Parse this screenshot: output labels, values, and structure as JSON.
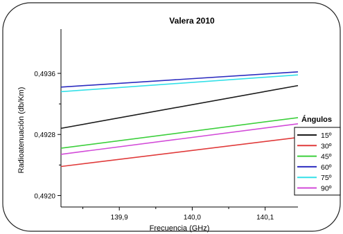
{
  "chart_data": {
    "type": "line",
    "title": "Valera 2010",
    "xlabel": "Frecuencia (GHz)",
    "ylabel": "Radioatenuación (db/Km)",
    "xlim": [
      139.82,
      140.145
    ],
    "ylim": [
      0.49185,
      0.49418
    ],
    "x_ticks": [
      139.9,
      140.0,
      140.1
    ],
    "x_tick_labels": [
      "139,9",
      "140,0",
      "140,1"
    ],
    "y_ticks": [
      0.492,
      0.4928,
      0.4936
    ],
    "y_tick_labels": [
      "0,4920",
      "0,4928",
      "0,4936"
    ],
    "legend_title": "Ángulos",
    "legend_position": "right",
    "grid": false,
    "series": [
      {
        "name": "15º",
        "color": "#1a1a1a",
        "x": [
          139.82,
          140.145
        ],
        "y": [
          0.49288,
          0.49344
        ]
      },
      {
        "name": "30º",
        "color": "#e03a3a",
        "x": [
          139.82,
          140.145
        ],
        "y": [
          0.49238,
          0.49276
        ]
      },
      {
        "name": "45º",
        "color": "#3ccf3c",
        "x": [
          139.82,
          140.145
        ],
        "y": [
          0.49262,
          0.49302
        ]
      },
      {
        "name": "60º",
        "color": "#2b2bbf",
        "x": [
          139.82,
          140.145
        ],
        "y": [
          0.49342,
          0.49362
        ]
      },
      {
        "name": "75º",
        "color": "#33e0e8",
        "x": [
          139.82,
          140.145
        ],
        "y": [
          0.49336,
          0.49358
        ]
      },
      {
        "name": "90º",
        "color": "#d24ad8",
        "x": [
          139.82,
          140.145
        ],
        "y": [
          0.49254,
          0.49294
        ]
      }
    ]
  }
}
